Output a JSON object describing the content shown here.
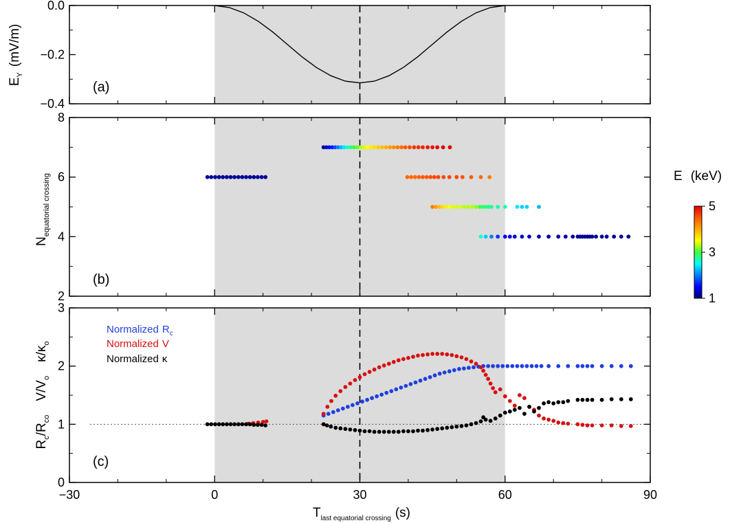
{
  "chart_data": [
    {
      "panel_label": "(a)",
      "type": "line",
      "ylabel": "E",
      "ylabel_sub": "Y",
      "ylabel_unit": "(mV/m)",
      "xlim": [
        -30,
        90
      ],
      "ylim": [
        -0.4,
        0.0
      ],
      "yticks": [
        "0.0",
        "−0.2",
        "−0.4"
      ],
      "ytick_values": [
        0.0,
        -0.2,
        -0.4
      ],
      "shaded_x": [
        0,
        60
      ],
      "vline_x": 30,
      "series": [
        {
          "color": "#000000",
          "x": [
            0,
            3,
            6,
            9,
            12,
            15,
            18,
            21,
            24,
            27,
            30,
            33,
            36,
            39,
            42,
            45,
            48,
            51,
            54,
            57,
            60
          ],
          "y": [
            0.0,
            -0.008,
            -0.03,
            -0.064,
            -0.108,
            -0.158,
            -0.208,
            -0.252,
            -0.286,
            -0.308,
            -0.315,
            -0.308,
            -0.286,
            -0.252,
            -0.208,
            -0.158,
            -0.108,
            -0.064,
            -0.03,
            -0.008,
            0.0
          ]
        }
      ]
    },
    {
      "panel_label": "(b)",
      "type": "scatter",
      "ylabel": "N",
      "ylabel_sub": "equatorial crossing",
      "xlim": [
        -30,
        90
      ],
      "ylim": [
        2,
        8
      ],
      "yticks": [
        "2",
        "4",
        "6",
        "8"
      ],
      "ytick_values": [
        2,
        4,
        6,
        8
      ],
      "shaded_x": [
        0,
        60
      ],
      "vline_x": 30,
      "colorbar": {
        "title": "E",
        "unit": "(keV)",
        "range": [
          1,
          5
        ],
        "ticks": [
          "1",
          "3",
          "5"
        ],
        "tick_values": [
          1,
          3,
          5
        ]
      },
      "series": [
        {
          "y": 6,
          "x": [
            -1.5,
            -0.7,
            0.1,
            0.9,
            1.7,
            2.5,
            3.3,
            4.1,
            4.9,
            5.7,
            6.5,
            7.3,
            8.1,
            8.9,
            9.7,
            10.5
          ],
          "e": [
            1.1,
            1.1,
            1.1,
            1.1,
            1.1,
            1.1,
            1.1,
            1.1,
            1.1,
            1.1,
            1.1,
            1.1,
            1.1,
            1.1,
            1.1,
            1.1
          ]
        },
        {
          "y": 7,
          "x": [
            22.5,
            23.1,
            23.7,
            24.3,
            24.9,
            25.5,
            26.1,
            26.7,
            27.4,
            28.1,
            28.8,
            29.5,
            30.2,
            30.9,
            31.6,
            32.3,
            33.0,
            33.8,
            34.6,
            35.4,
            36.2,
            37.0,
            37.8,
            38.6,
            39.4,
            40.3,
            41.2,
            42.1,
            43.0,
            44.0,
            45.0,
            46.0,
            47.2,
            48.6
          ],
          "e": [
            1.1,
            1.3,
            1.5,
            1.6,
            1.8,
            2.0,
            2.2,
            2.4,
            2.6,
            2.8,
            3.0,
            3.1,
            3.3,
            3.4,
            3.5,
            3.6,
            3.7,
            3.8,
            3.9,
            4.0,
            4.1,
            4.2,
            4.3,
            4.4,
            4.5,
            4.6,
            4.7,
            4.75,
            4.8,
            4.85,
            4.9,
            4.95,
            5.0,
            5.1
          ]
        },
        {
          "y": 6,
          "x": [
            39.8,
            40.6,
            41.4,
            42.2,
            43.0,
            43.8,
            44.6,
            45.4,
            46.2,
            47.3,
            48.5,
            50.0,
            51.2,
            53.0,
            55.0,
            56.8
          ],
          "e": [
            4.4,
            4.4,
            4.4,
            4.45,
            4.5,
            4.5,
            4.55,
            4.6,
            4.6,
            4.6,
            4.6,
            4.6,
            4.55,
            4.5,
            4.4,
            4.3
          ]
        },
        {
          "y": 5,
          "x": [
            45.0,
            45.7,
            46.4,
            47.1,
            47.8,
            48.5,
            49.2,
            50.0,
            50.8,
            51.6,
            52.4,
            53.2,
            54.0,
            54.8,
            55.4,
            56.0,
            56.6,
            57.2,
            58.5,
            60.0,
            62.5,
            63.5,
            64.5,
            67.0
          ],
          "e": [
            4.3,
            4.1,
            3.9,
            3.7,
            3.6,
            3.5,
            3.4,
            3.4,
            3.4,
            3.3,
            3.3,
            3.3,
            3.2,
            3.0,
            2.9,
            2.8,
            2.8,
            2.8,
            2.7,
            2.7,
            2.4,
            2.3,
            2.3,
            2.2
          ]
        },
        {
          "y": 4,
          "x": [
            55.0,
            56.0,
            57.2,
            58.5,
            60.0,
            61.0,
            62.0,
            63.5,
            65.0,
            67.0,
            69.0,
            71.0,
            72.5,
            74.0,
            75.0,
            75.5,
            76.0,
            76.5,
            77.0,
            77.5,
            78.0,
            78.8,
            80.0,
            81.0,
            82.5,
            84.0,
            85.5
          ],
          "e": [
            2.6,
            2.3,
            2.0,
            1.7,
            1.5,
            1.4,
            1.35,
            1.3,
            1.25,
            1.2,
            1.15,
            1.15,
            1.15,
            1.1,
            1.1,
            1.1,
            1.1,
            1.1,
            1.1,
            1.1,
            1.1,
            1.1,
            1.1,
            1.1,
            1.1,
            1.1,
            1.1
          ]
        }
      ]
    },
    {
      "panel_label": "(c)",
      "type": "scatter",
      "ylabel_parts": [
        "R",
        "c",
        "/R",
        "co",
        "V/V",
        "o",
        "κ/κ",
        "o"
      ],
      "xlim": [
        -30,
        90
      ],
      "ylim": [
        0,
        3
      ],
      "yticks": [
        "0",
        "1",
        "2",
        "3"
      ],
      "ytick_values": [
        0,
        1,
        2,
        3
      ],
      "xticks": [
        "−30",
        "0",
        "30",
        "60",
        "90"
      ],
      "xtick_values": [
        -30,
        0,
        30,
        60,
        90
      ],
      "xlabel": "T",
      "xlabel_sub": "last equatorial crossing",
      "xlabel_unit": "(s)",
      "shaded_x": [
        0,
        60
      ],
      "vline_x": 30,
      "hline_y": 1,
      "legend": [
        {
          "text": "Normalized",
          "symbol": "R",
          "symbol_sub": "c",
          "color": "#1f3fe0"
        },
        {
          "text": "Normalized",
          "symbol": "V",
          "color": "#d80f0f"
        },
        {
          "text": "Normalized",
          "symbol": "κ",
          "color": "#000000"
        }
      ],
      "series": [
        {
          "color": "#1f3fe0",
          "x": [
            22.5,
            23.5,
            24.5,
            25.5,
            26.5,
            27.5,
            28.5,
            29.5,
            30.5,
            31.5,
            32.5,
            33.5,
            34.5,
            35.5,
            36.5,
            37.5,
            38.5,
            39.5,
            40.5,
            41.5,
            42.5,
            43.5,
            44.5,
            45.5,
            46.5,
            47.5,
            48.5,
            49.5,
            50.5,
            51.5,
            52.5,
            53.5,
            54.5,
            55.5,
            56.5,
            57.5,
            58.5,
            59.5,
            60.5,
            61.5,
            62.5,
            63.5,
            64.5,
            65.5,
            66.5,
            67.5,
            69.0,
            71.0,
            73.0,
            75.0,
            76.0,
            77.0,
            78.0,
            80.0,
            82.0,
            84.0,
            86.0
          ],
          "y": [
            1.15,
            1.18,
            1.21,
            1.24,
            1.27,
            1.3,
            1.33,
            1.36,
            1.39,
            1.42,
            1.45,
            1.48,
            1.51,
            1.54,
            1.57,
            1.6,
            1.63,
            1.66,
            1.69,
            1.72,
            1.75,
            1.78,
            1.81,
            1.84,
            1.87,
            1.89,
            1.91,
            1.93,
            1.95,
            1.96,
            1.97,
            1.98,
            1.99,
            2.0,
            2.0,
            2.0,
            2.0,
            2.0,
            2.0,
            2.0,
            2.0,
            2.0,
            2.0,
            2.0,
            2.0,
            2.0,
            2.0,
            2.0,
            2.0,
            2.0,
            2.0,
            2.0,
            2.0,
            2.0,
            2.0,
            2.0,
            2.0
          ]
        },
        {
          "color": "#d80f0f",
          "x": [
            7.0,
            8.0,
            9.0,
            10.0,
            10.7,
            22.5,
            23.3,
            24.1,
            25.0,
            26.0,
            27.0,
            28.0,
            29.0,
            30.0,
            31.0,
            32.0,
            33.0,
            34.0,
            35.0,
            36.0,
            37.0,
            38.0,
            39.0,
            40.0,
            41.0,
            42.0,
            43.0,
            44.0,
            45.0,
            46.0,
            47.0,
            48.0,
            49.0,
            50.0,
            51.0,
            52.0,
            53.0,
            54.0,
            55.0,
            55.5,
            56.0,
            56.5,
            57.0,
            57.5,
            58.0,
            59.0,
            60.0,
            61.0,
            62.0,
            63.0,
            64.0,
            65.0,
            66.0,
            67.0,
            68.0,
            69.0,
            70.0,
            71.0,
            72.0,
            73.0,
            75.0,
            76.0,
            77.0,
            78.0,
            80.0,
            82.0,
            84.0,
            86.0
          ],
          "y": [
            1.01,
            1.02,
            1.03,
            1.04,
            1.05,
            1.18,
            1.3,
            1.4,
            1.49,
            1.57,
            1.64,
            1.7,
            1.76,
            1.81,
            1.86,
            1.9,
            1.94,
            1.98,
            2.01,
            2.04,
            2.07,
            2.1,
            2.12,
            2.14,
            2.16,
            2.18,
            2.19,
            2.2,
            2.21,
            2.21,
            2.21,
            2.2,
            2.19,
            2.17,
            2.15,
            2.12,
            2.08,
            2.04,
            1.98,
            1.92,
            1.85,
            1.78,
            1.7,
            1.62,
            1.55,
            1.6,
            1.48,
            1.4,
            1.32,
            1.5,
            1.45,
            1.3,
            1.25,
            1.15,
            1.1,
            1.08,
            1.06,
            1.03,
            1.02,
            1.01,
            1.0,
            0.99,
            0.98,
            0.98,
            0.98,
            0.98,
            0.97,
            0.97
          ]
        },
        {
          "color": "#000000",
          "x": [
            -1.5,
            -0.7,
            0.1,
            0.9,
            1.7,
            2.5,
            3.3,
            4.1,
            4.9,
            5.7,
            6.5,
            7.3,
            8.1,
            8.9,
            9.7,
            10.5,
            22.5,
            23.2,
            24.0,
            25.0,
            26.0,
            27.0,
            28.0,
            29.0,
            30.0,
            31.0,
            32.0,
            33.0,
            34.0,
            35.0,
            36.0,
            37.0,
            38.0,
            39.0,
            40.0,
            41.0,
            42.0,
            43.0,
            44.0,
            45.0,
            46.0,
            47.0,
            48.0,
            49.0,
            50.0,
            51.0,
            52.0,
            53.0,
            54.0,
            55.0,
            55.5,
            56.0,
            57.0,
            58.0,
            59.0,
            60.0,
            61.0,
            62.0,
            63.0,
            64.0,
            65.0,
            66.0,
            67.0,
            68.0,
            69.0,
            70.0,
            71.0,
            72.0,
            73.0,
            75.0,
            76.0,
            77.0,
            78.0,
            80.0,
            82.0,
            84.0,
            86.0
          ],
          "y": [
            1.0,
            1.0,
            1.0,
            1.0,
            1.0,
            1.0,
            1.0,
            1.0,
            1.0,
            1.0,
            1.0,
            1.0,
            0.99,
            0.99,
            0.99,
            0.98,
            1.0,
            0.98,
            0.96,
            0.94,
            0.93,
            0.92,
            0.91,
            0.9,
            0.89,
            0.88,
            0.88,
            0.87,
            0.87,
            0.87,
            0.87,
            0.87,
            0.87,
            0.88,
            0.88,
            0.88,
            0.89,
            0.89,
            0.9,
            0.91,
            0.92,
            0.93,
            0.94,
            0.95,
            0.96,
            0.97,
            0.98,
            1.0,
            1.02,
            1.05,
            1.12,
            1.08,
            1.06,
            1.1,
            1.15,
            1.2,
            1.22,
            1.25,
            1.28,
            1.18,
            1.3,
            1.22,
            1.28,
            1.36,
            1.38,
            1.36,
            1.38,
            1.38,
            1.4,
            1.42,
            1.42,
            1.42,
            1.42,
            1.42,
            1.43,
            1.43,
            1.43
          ]
        }
      ]
    }
  ]
}
